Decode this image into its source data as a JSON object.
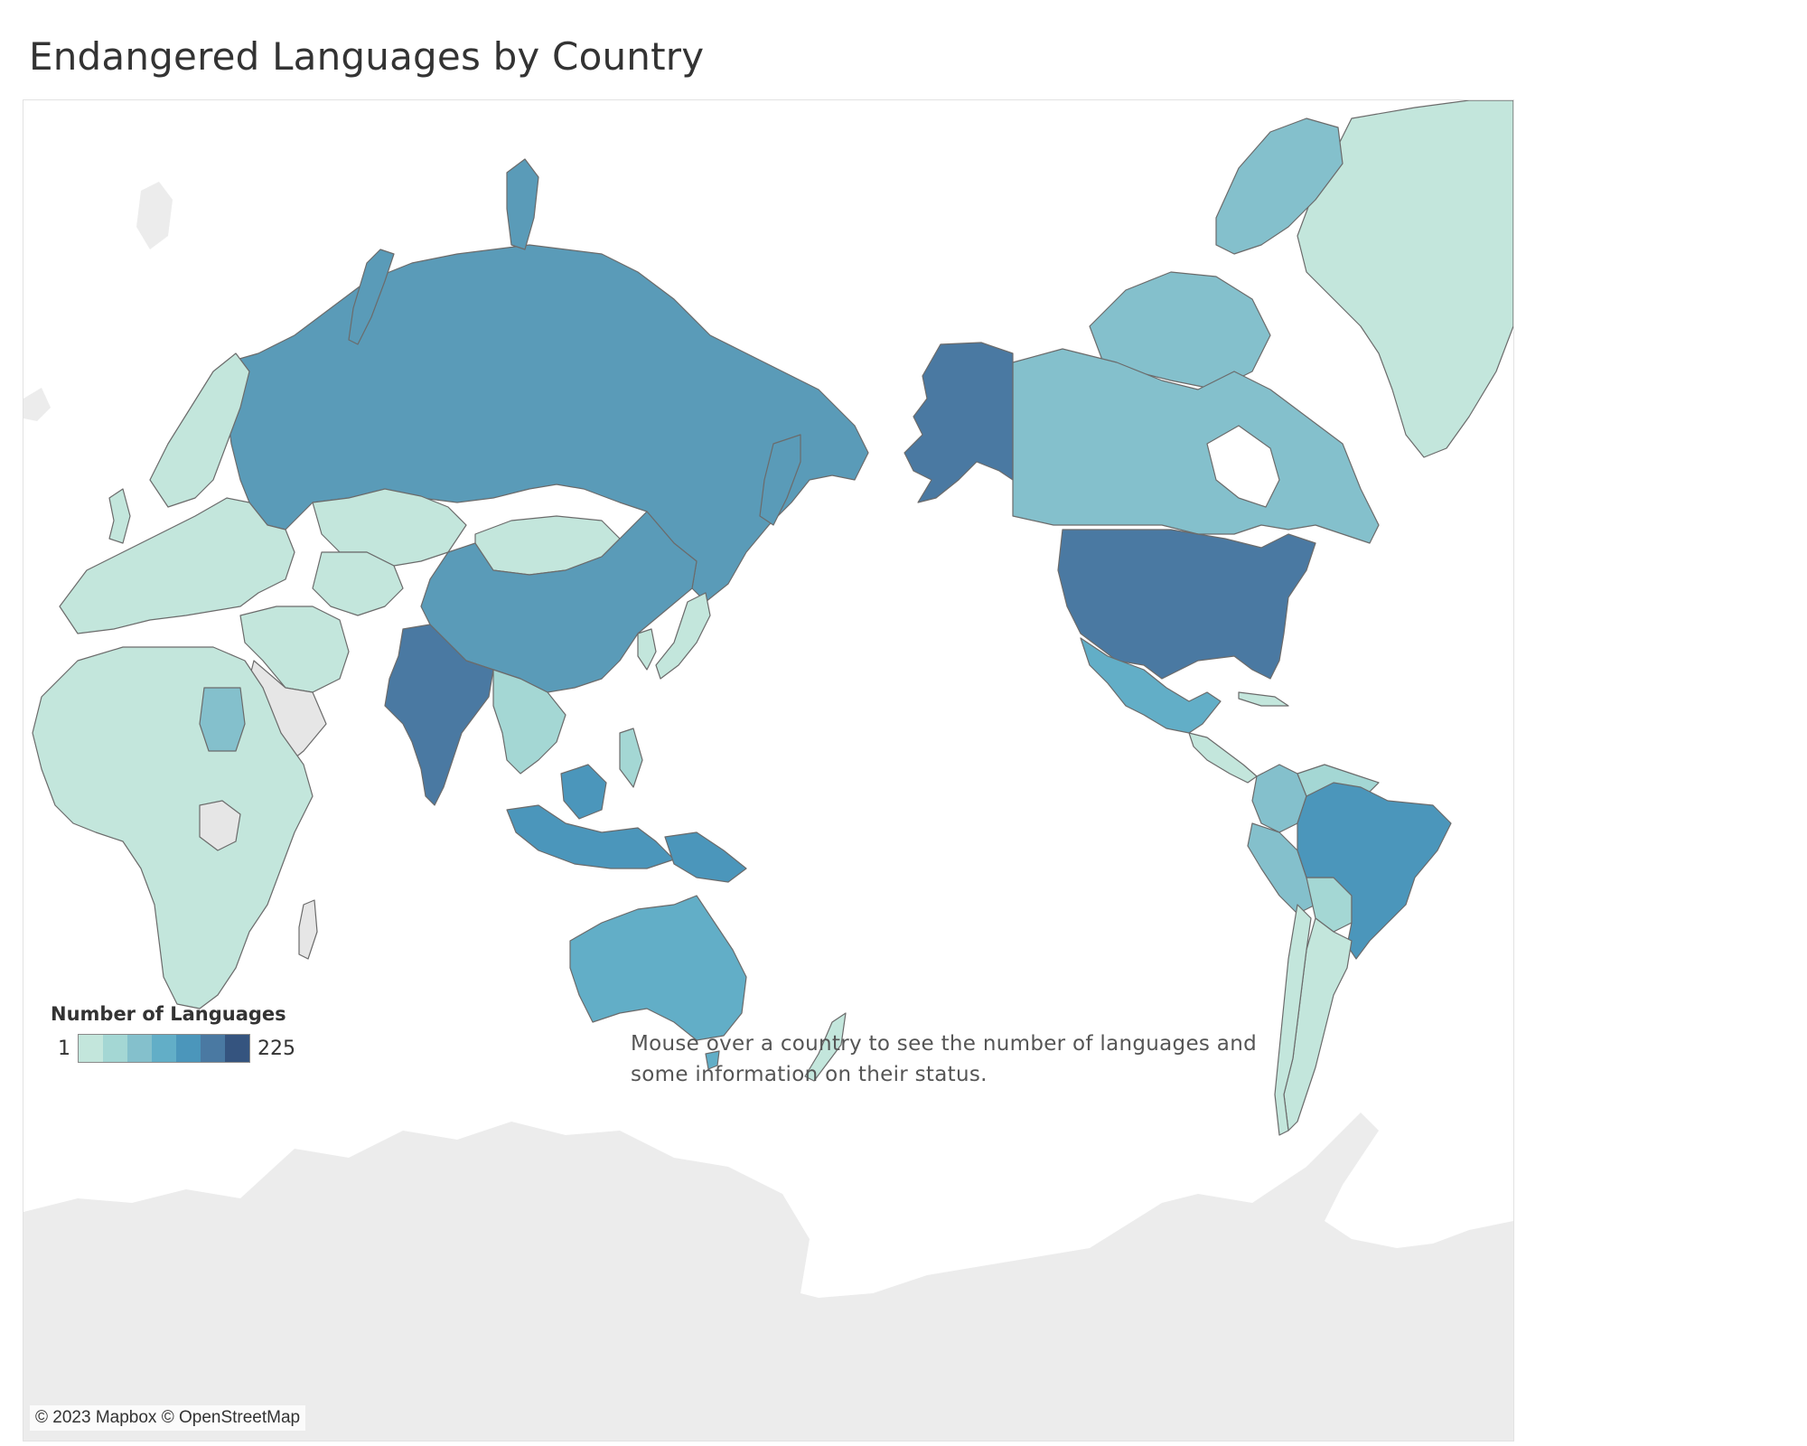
{
  "title": "Endangered Languages by Country",
  "legend": {
    "title": "Number of Languages",
    "min_label": "1",
    "max_label": "225",
    "steps": [
      "#c3e6dc",
      "#a4d7d4",
      "#84c0cc",
      "#62aec7",
      "#4b96bb",
      "#4a79a2",
      "#35547f"
    ]
  },
  "note": "Mouse over a country to see the number of languages and some information on their status.",
  "attribution": "© 2023 Mapbox © OpenStreetMap",
  "colors": {
    "no_data": "#e6e6e6",
    "background": "#ffffff",
    "country_border": "#6b6b6b"
  }
}
